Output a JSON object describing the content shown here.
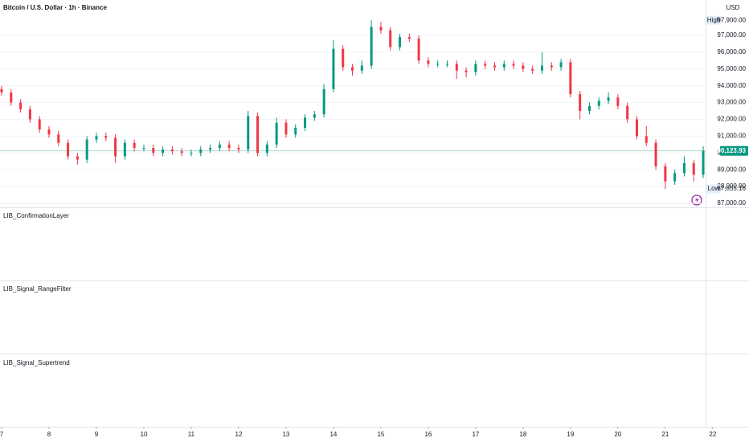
{
  "chart_data": {
    "type": "candlestick",
    "title": "Bitcoin / U.S. Dollar · 1h · Binance",
    "currency": "USD",
    "up_color": "#089981",
    "down_color": "#f23645",
    "grid": true,
    "x": [
      7,
      7.2,
      7.4,
      7.6,
      7.8,
      8,
      8.2,
      8.4,
      8.6,
      8.8,
      9,
      9.2,
      9.4,
      9.6,
      9.8,
      10,
      10.2,
      10.4,
      10.6,
      10.8,
      11,
      11.2,
      11.4,
      11.6,
      11.8,
      12,
      12.2,
      12.4,
      12.6,
      12.8,
      13,
      13.2,
      13.4,
      13.6,
      13.8,
      14,
      14.2,
      14.4,
      14.6,
      14.8,
      15,
      15.2,
      15.4,
      15.6,
      15.8,
      16,
      16.2,
      16.4,
      16.6,
      16.8,
      17,
      17.2,
      17.4,
      17.6,
      17.8,
      18,
      18.2,
      18.4,
      18.6,
      18.8,
      19,
      19.2,
      19.4,
      19.6,
      19.8,
      20,
      20.2,
      20.4,
      20.6,
      20.8,
      21,
      21.2,
      21.4,
      21.6,
      21.8
    ],
    "open": [
      93800,
      93600,
      93000,
      92600,
      92000,
      91400,
      91100,
      90600,
      89800,
      89600,
      90800,
      91000,
      90900,
      89800,
      90600,
      90300,
      90300,
      90000,
      90200,
      90100,
      90000,
      90000,
      90200,
      90300,
      90500,
      90300,
      90200,
      92200,
      90000,
      90500,
      91800,
      91100,
      91500,
      92100,
      92300,
      93800,
      96200,
      95100,
      94900,
      95200,
      97500,
      97300,
      96300,
      96900,
      96800,
      95500,
      95300,
      95300,
      95300,
      94900,
      94800,
      95300,
      95200,
      95100,
      95300,
      95200,
      95000,
      94900,
      95200,
      95100,
      95400,
      93500,
      92500,
      92800,
      93100,
      93300,
      92800,
      92000,
      91000,
      90600,
      89200,
      88300,
      88800,
      89400,
      88700
    ],
    "high": [
      94000,
      93800,
      93200,
      92800,
      92200,
      91600,
      91300,
      90800,
      90000,
      91000,
      91200,
      91200,
      91100,
      90800,
      90800,
      90500,
      90500,
      90400,
      90400,
      90300,
      90200,
      90400,
      90500,
      90700,
      90700,
      90500,
      92500,
      92400,
      90700,
      92100,
      92000,
      91700,
      92300,
      92500,
      94100,
      96700,
      96400,
      95300,
      95500,
      97900,
      97800,
      97500,
      97100,
      97100,
      97000,
      95700,
      95500,
      95500,
      95500,
      95100,
      95500,
      95500,
      95400,
      95500,
      95500,
      95400,
      95200,
      96000,
      95400,
      95600,
      95600,
      93700,
      93000,
      93300,
      93600,
      93500,
      93000,
      92200,
      91600,
      90800,
      89400,
      89000,
      89800,
      89600,
      90400
    ],
    "low": [
      93400,
      92800,
      92400,
      91800,
      91200,
      90900,
      90400,
      89600,
      89300,
      89400,
      90600,
      90700,
      89400,
      89600,
      90100,
      90100,
      89800,
      89800,
      89900,
      89800,
      89800,
      89800,
      90000,
      90100,
      90100,
      90000,
      90000,
      89800,
      89800,
      90300,
      90900,
      90900,
      91300,
      91900,
      92100,
      93600,
      94900,
      94600,
      94700,
      95000,
      97100,
      96100,
      96100,
      96600,
      95300,
      95100,
      95100,
      95100,
      94400,
      94500,
      94600,
      95000,
      94900,
      94900,
      95000,
      94800,
      94700,
      94700,
      94900,
      94900,
      93300,
      92000,
      92300,
      92600,
      92900,
      92600,
      91800,
      90800,
      90400,
      89000,
      87855.16,
      88100,
      88600,
      88300,
      88500
    ],
    "close": [
      93600,
      93000,
      92600,
      92000,
      91400,
      91100,
      90600,
      89800,
      89600,
      90800,
      91000,
      90900,
      89800,
      90600,
      90300,
      90300,
      90000,
      90200,
      90100,
      90000,
      90000,
      90200,
      90300,
      90500,
      90300,
      90200,
      92200,
      90000,
      90500,
      91800,
      91100,
      91500,
      92100,
      92300,
      93800,
      96200,
      95100,
      94900,
      95200,
      97500,
      97300,
      96300,
      96900,
      96800,
      95500,
      95300,
      95300,
      95300,
      94900,
      94800,
      95300,
      95200,
      95100,
      95300,
      95200,
      95000,
      94900,
      95200,
      95100,
      95400,
      93500,
      92500,
      92800,
      93100,
      93300,
      92800,
      92000,
      91000,
      90600,
      89200,
      88300,
      88800,
      89400,
      88700,
      90123.93
    ],
    "xlim": [
      6.966,
      21.85
    ],
    "xticks": [
      7,
      8,
      9,
      10,
      11,
      12,
      13,
      14,
      15,
      16,
      17,
      18,
      19,
      20,
      21,
      22
    ],
    "ylim": [
      86760,
      99105
    ],
    "yticks": [
      {
        "value": 87000,
        "label": "87,000.00"
      },
      {
        "value": 88000,
        "label": "88,000.00"
      },
      {
        "value": 89000,
        "label": "89,000.00"
      },
      {
        "value": 90000,
        "label": "90,000.00"
      },
      {
        "value": 91000,
        "label": "91,000.00"
      },
      {
        "value": 92000,
        "label": "92,000.00"
      },
      {
        "value": 93000,
        "label": "93,000.00"
      },
      {
        "value": 94000,
        "label": "94,000.00"
      },
      {
        "value": 95000,
        "label": "95,000.00"
      },
      {
        "value": 96000,
        "label": "96,000.00"
      },
      {
        "value": 97000,
        "label": "97,000.00"
      }
    ],
    "high_marker": {
      "label": "High",
      "value": 97900,
      "value_label": "97,900.00"
    },
    "low_marker": {
      "label": "Low",
      "value": 87855.16,
      "value_label": "87,855.16"
    },
    "last_price": {
      "value": 90123.93,
      "label": "90,123.93"
    },
    "panes": [
      "LIB_ConfirmationLayer",
      "LIB_Signal_RangeFilter",
      "LIB_Signal_Supertrend"
    ]
  }
}
